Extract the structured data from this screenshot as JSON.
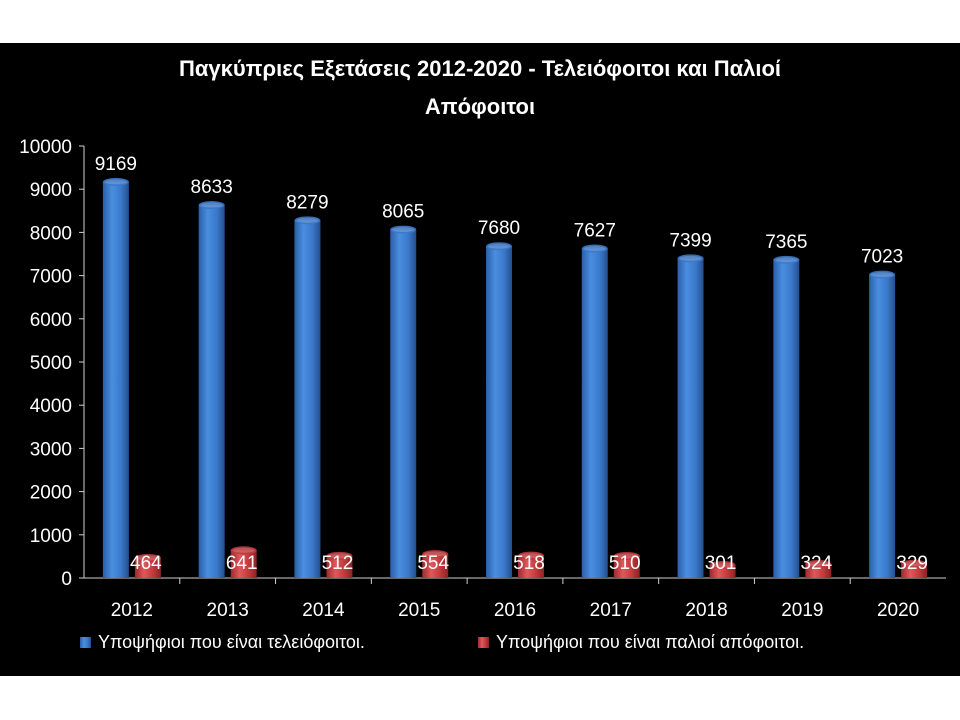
{
  "chart_data": {
    "type": "bar",
    "title_lines": [
      "Παγκύπριες Εξετάσεις 2012-2020 - Τελειόφοιτοι και Παλιοί",
      "Απόφοιτοι"
    ],
    "xlabel": "",
    "ylabel": "",
    "categories": [
      "2012",
      "2013",
      "2014",
      "2015",
      "2016",
      "2017",
      "2018",
      "2019",
      "2020"
    ],
    "ylim": [
      0,
      10000
    ],
    "yticks": [
      0,
      1000,
      2000,
      3000,
      4000,
      5000,
      6000,
      7000,
      8000,
      9000,
      10000
    ],
    "grid": false,
    "legend_position": "bottom",
    "series": [
      {
        "name": "Υποψήφιοι που είναι τελειόφοιτοι.",
        "values": [
          9169,
          8633,
          8279,
          8065,
          7680,
          7627,
          7399,
          7365,
          7023
        ],
        "color": "#3a78c9"
      },
      {
        "name": "Υποψήφιοι που είναι παλιοί απόφοιτοι.",
        "values": [
          464,
          641,
          512,
          554,
          518,
          510,
          301,
          324,
          329
        ],
        "color": "#c0393b"
      }
    ]
  },
  "colors": {
    "background": "#000000",
    "text": "#ffffff",
    "label_dark": "#111111",
    "axis": "#d0d0d0"
  }
}
